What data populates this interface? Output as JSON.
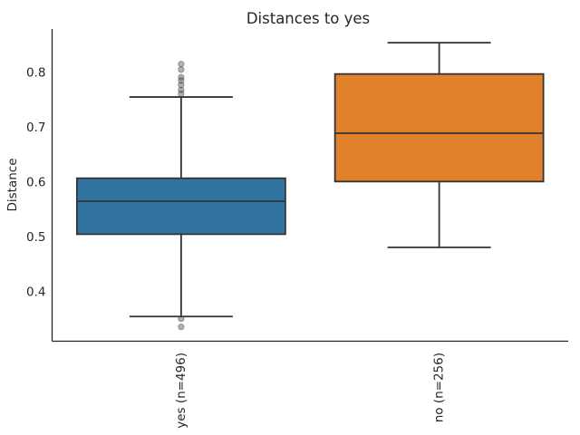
{
  "figure": {
    "background": "#ffffff"
  },
  "chart_data": {
    "type": "boxplot",
    "title": "Distances to yes",
    "xlabel": "",
    "ylabel": "Distance",
    "ylim": [
      0.311,
      0.88
    ],
    "yticks": [
      0.4,
      0.5,
      0.6,
      0.7,
      0.8
    ],
    "grid": false,
    "legend": false,
    "categories": [
      "yes (n=496)",
      "no (n=256)"
    ],
    "series": [
      {
        "name": "yes (n=496)",
        "color": "#3274A1",
        "whisker_low": 0.356,
        "q1": 0.506,
        "median": 0.566,
        "q3": 0.608,
        "whisker_high": 0.756,
        "outliers_high": [
          0.816,
          0.806,
          0.792,
          0.786,
          0.778,
          0.769,
          0.762
        ],
        "outliers_low": [
          0.352,
          0.337
        ]
      },
      {
        "name": "no (n=256)",
        "color": "#E1812C",
        "whisker_low": 0.482,
        "q1": 0.602,
        "median": 0.69,
        "q3": 0.798,
        "whisker_high": 0.855,
        "outliers_high": [],
        "outliers_low": []
      }
    ],
    "colors": {
      "edge": "#333333",
      "spine": "#262626",
      "text": "#262626",
      "flier": "#3c3c3c"
    }
  }
}
